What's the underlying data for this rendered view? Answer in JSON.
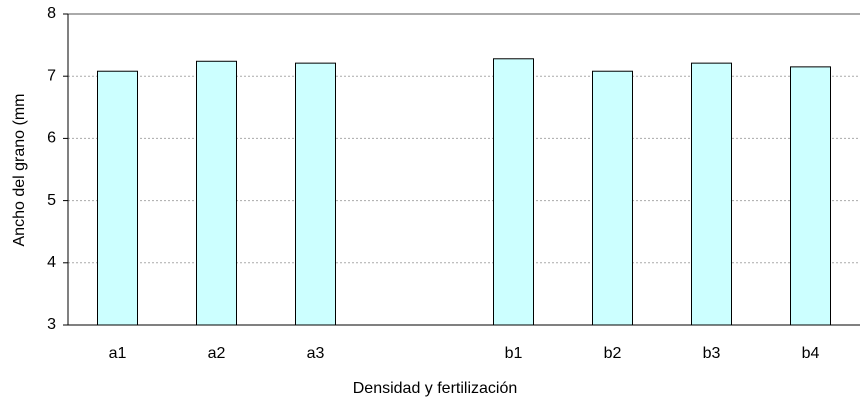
{
  "chart_data": {
    "type": "bar",
    "categories": [
      "a1",
      "a2",
      "a3",
      null,
      "b1",
      "b2",
      "b3",
      "b4"
    ],
    "values": [
      7.08,
      7.24,
      7.21,
      null,
      7.28,
      7.08,
      7.21,
      7.15
    ],
    "color": "#ccffff",
    "xlabel": "Densidad  y fertilización",
    "ylabel": "Ancho del grano (mm",
    "ylim": [
      3,
      8
    ],
    "yticks": [
      3,
      4,
      5,
      6,
      7,
      8
    ],
    "grid": true
  }
}
